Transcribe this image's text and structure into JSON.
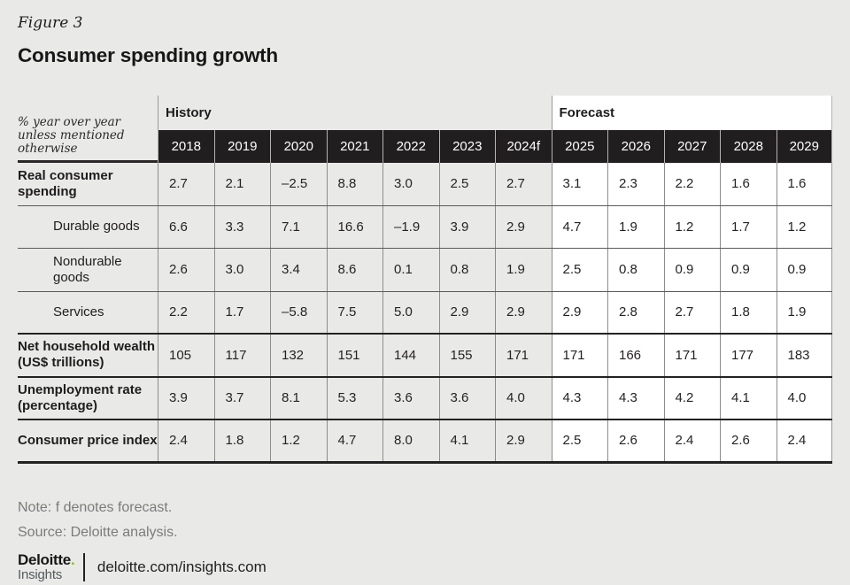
{
  "figure_label": "Figure 3",
  "chart_data": {
    "type": "table",
    "title": "Consumer spending growth",
    "unit_note": "% year over year unless mentioned otherwise",
    "column_groups": [
      {
        "label": "History",
        "cols": 7
      },
      {
        "label": "Forecast",
        "cols": 5
      }
    ],
    "columns": [
      "2018",
      "2019",
      "2020",
      "2021",
      "2022",
      "2023",
      "2024f",
      "2025",
      "2026",
      "2027",
      "2028",
      "2029"
    ],
    "rows": [
      {
        "label": "Real consumer spending",
        "bold": true,
        "indent": false,
        "values": [
          "2.7",
          "2.1",
          "–2.5",
          "8.8",
          "3.0",
          "2.5",
          "2.7",
          "3.1",
          "2.3",
          "2.2",
          "1.6",
          "1.6"
        ]
      },
      {
        "label": "Durable goods",
        "bold": false,
        "indent": true,
        "values": [
          "6.6",
          "3.3",
          "7.1",
          "16.6",
          "–1.9",
          "3.9",
          "2.9",
          "4.7",
          "1.9",
          "1.2",
          "1.7",
          "1.2"
        ]
      },
      {
        "label": "Nondurable goods",
        "bold": false,
        "indent": true,
        "values": [
          "2.6",
          "3.0",
          "3.4",
          "8.6",
          "0.1",
          "0.8",
          "1.9",
          "2.5",
          "0.8",
          "0.9",
          "0.9",
          "0.9"
        ]
      },
      {
        "label": "Services",
        "bold": false,
        "indent": true,
        "values": [
          "2.2",
          "1.7",
          "–5.8",
          "7.5",
          "5.0",
          "2.9",
          "2.9",
          "2.9",
          "2.8",
          "2.7",
          "1.8",
          "1.9"
        ]
      },
      {
        "label": "Net household wealth (US$ trillions)",
        "bold": true,
        "indent": false,
        "values": [
          "105",
          "117",
          "132",
          "151",
          "144",
          "155",
          "171",
          "171",
          "166",
          "171",
          "177",
          "183"
        ]
      },
      {
        "label": "Unemployment rate (percentage)",
        "bold": true,
        "indent": false,
        "values": [
          "3.9",
          "3.7",
          "8.1",
          "5.3",
          "3.6",
          "3.6",
          "4.0",
          "4.3",
          "4.3",
          "4.2",
          "4.1",
          "4.0"
        ]
      },
      {
        "label": "Consumer price index",
        "bold": true,
        "indent": false,
        "values": [
          "2.4",
          "1.8",
          "1.2",
          "4.7",
          "8.0",
          "4.1",
          "2.9",
          "2.5",
          "2.6",
          "2.4",
          "2.6",
          "2.4"
        ]
      }
    ]
  },
  "notes": {
    "note": "Note: f denotes forecast.",
    "source": "Source: Deloitte analysis."
  },
  "footer": {
    "logo_primary": "Deloitte",
    "logo_dot": ".",
    "logo_secondary": "Insights",
    "url": "deloitte.com/insights.com"
  },
  "colors": {
    "page_background": "#e9eae8",
    "header_bar": "#211e1f",
    "forecast_cell_background": "#ffffff",
    "deloitte_green": "#86bc25",
    "muted_text": "#7b7b7b"
  }
}
